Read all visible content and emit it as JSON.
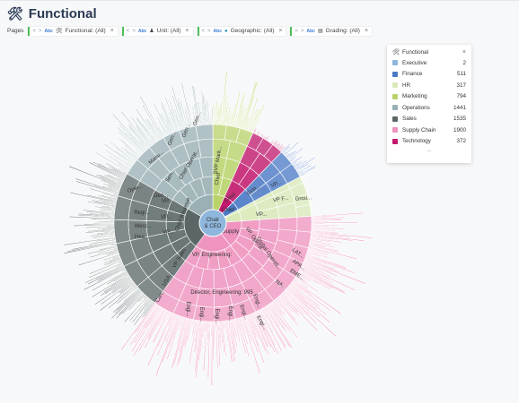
{
  "page_title": "Functional",
  "title_icon": "tools-icon",
  "pages_label": "Pages",
  "filters": [
    {
      "text": "Functional: (All)",
      "icon": "tools-icon"
    },
    {
      "text": "Unit: (All)",
      "icon": "org-icon"
    },
    {
      "text": "Geographic: (All)",
      "icon": "globe-icon"
    },
    {
      "text": "Grading: (All)",
      "icon": "document-icon"
    }
  ],
  "abc_label": "Abc",
  "legend": {
    "title": "Functional",
    "close": "×",
    "more": "...",
    "items": [
      {
        "name": "Executive",
        "value": "2",
        "color": "#8fb6dc"
      },
      {
        "name": "Finance",
        "value": "511",
        "color": "#4a79c6"
      },
      {
        "name": "HR",
        "value": "317",
        "color": "#d9e9b8"
      },
      {
        "name": "Marketing",
        "value": "794",
        "color": "#b9d36a"
      },
      {
        "name": "Operations",
        "value": "1441",
        "color": "#9ab0b5"
      },
      {
        "name": "Sales",
        "value": "1535",
        "color": "#5b6767"
      },
      {
        "name": "Supply Chain",
        "value": "1900",
        "color": "#ef93bf"
      },
      {
        "name": "Technology",
        "value": "372",
        "color": "#c2186d"
      }
    ]
  },
  "center_label": [
    "Chair",
    "& CEO"
  ],
  "segment_labels": [
    {
      "text": "Chief Operat..."
    },
    {
      "text": "SVP Mark..."
    },
    {
      "text": "Chief"
    },
    {
      "text": "Chief"
    },
    {
      "text": "SVP..."
    },
    {
      "text": "VP..."
    },
    {
      "text": "VP F..."
    },
    {
      "text": "Grou..."
    },
    {
      "text": "Chief"
    },
    {
      "text": "VP..."
    },
    {
      "text": "Chief Supply"
    },
    {
      "text": "VP, Engineering:"
    },
    {
      "text": "Director, Engineering: 995"
    },
    {
      "text": "Global Operati..."
    },
    {
      "text": "VP, Operat..."
    },
    {
      "text": "LAT..."
    },
    {
      "text": "APA..."
    },
    {
      "text": "EME..."
    },
    {
      "text": "NA..."
    },
    {
      "text": "Engi..."
    },
    {
      "text": "Engi..."
    },
    {
      "text": "Engi..."
    },
    {
      "text": "Engi..."
    },
    {
      "text": "Engi..."
    },
    {
      "text": "Engi..."
    },
    {
      "text": "Engi..."
    },
    {
      "text": "Chief Revenue"
    },
    {
      "text": "VP..."
    },
    {
      "text": "VP..."
    },
    {
      "text": "Regi..."
    },
    {
      "text": "West..."
    },
    {
      "text": "Hea..."
    },
    {
      "text": "VP..."
    },
    {
      "text": "VP Sales"
    },
    {
      "text": "USA..."
    },
    {
      "text": "Can..."
    },
    {
      "text": "Gen..."
    },
    {
      "text": "Gen..."
    },
    {
      "text": "Gen..."
    },
    {
      "text": "Manu..."
    },
    {
      "text": "Oper..."
    },
    {
      "text": "Sen..."
    },
    {
      "text": "Gen..."
    }
  ]
}
